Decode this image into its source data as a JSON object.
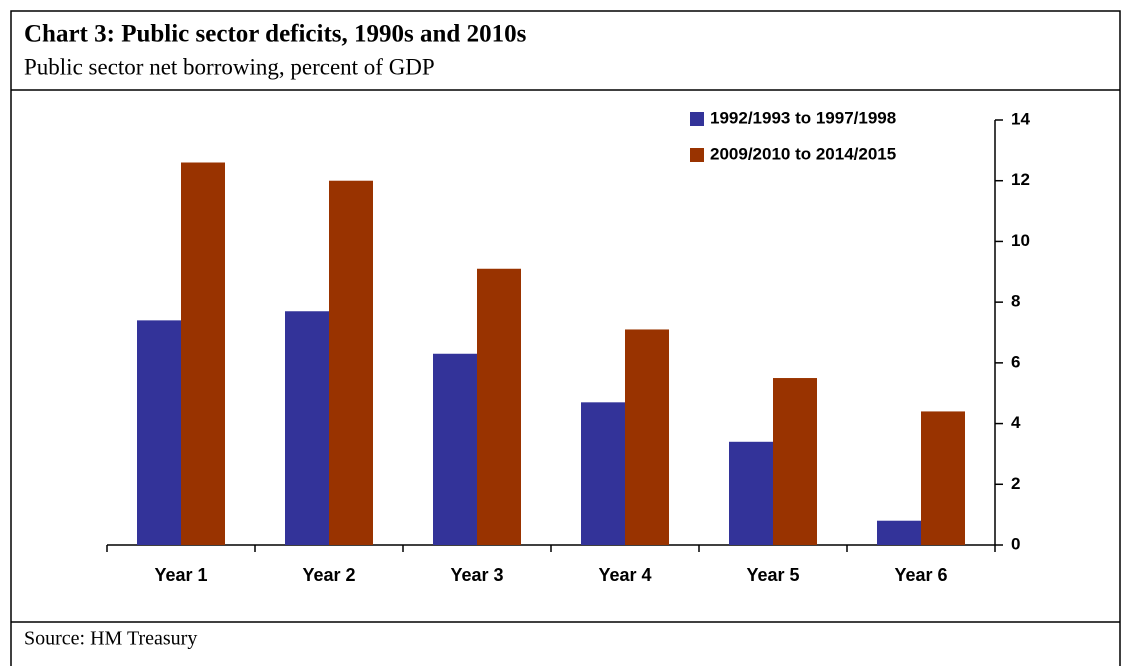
{
  "chart_data": {
    "type": "bar",
    "title": "Chart 3: Public sector deficits, 1990s and 2010s",
    "subtitle": "Public sector net borrowing, percent of GDP",
    "source": "Source: HM Treasury",
    "categories": [
      "Year 1",
      "Year 2",
      "Year 3",
      "Year 4",
      "Year 5",
      "Year 6"
    ],
    "series": [
      {
        "name": "1992/1993 to 1997/1998",
        "color": "#333399",
        "values": [
          7.4,
          7.7,
          6.3,
          4.7,
          3.4,
          0.8
        ]
      },
      {
        "name": "2009/2010 to 2014/2015",
        "color": "#993300",
        "values": [
          12.6,
          12.0,
          9.1,
          7.1,
          5.5,
          4.4
        ]
      }
    ],
    "ylim": [
      0,
      14
    ],
    "yticks": [
      0,
      2,
      4,
      6,
      8,
      10,
      12,
      14
    ],
    "y_axis_side": "right",
    "legend": "top-right",
    "grid": false
  }
}
